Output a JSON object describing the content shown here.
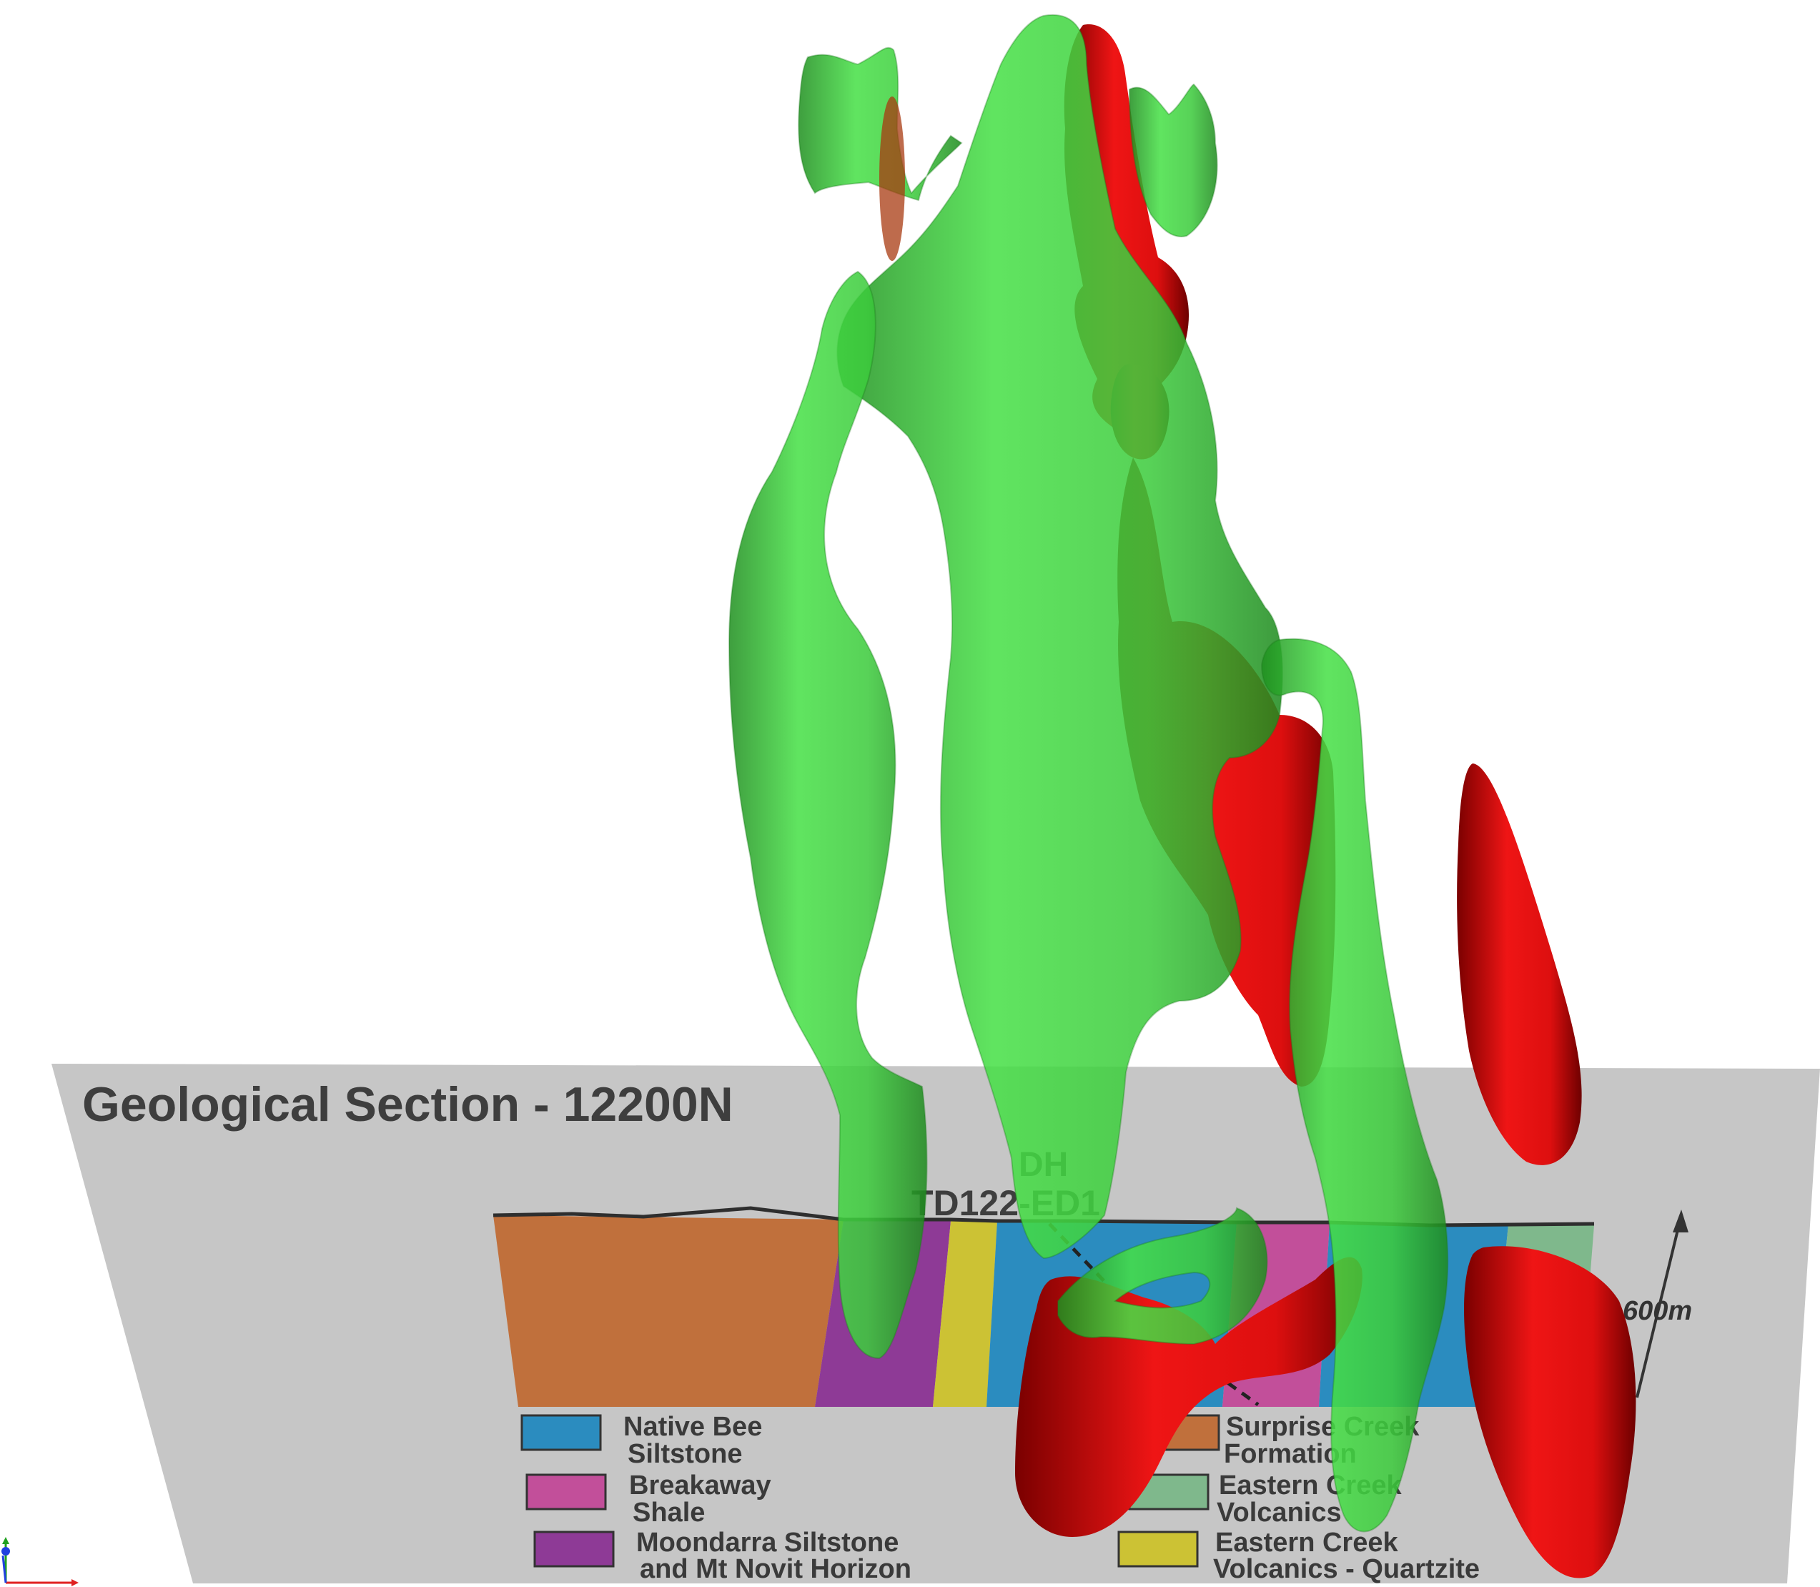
{
  "scene": {
    "background": "#ffffff",
    "section": {
      "title": "Geological Section - 12200N",
      "drillhole_line1": "DH",
      "drillhole_line2": "TD122-ED1",
      "scale_label": "600m",
      "panel_color": "#c6c6c6",
      "colors": {
        "surprise_creek": "#c0703c",
        "moondarra": "#8e3a96",
        "quartzite": "#ccc234",
        "native_bee": "#2b8cbf",
        "breakaway": "#c24f9a",
        "eastern_creek": "#7fb88c"
      },
      "legend": [
        {
          "line1": "Native Bee",
          "line2": "Siltstone",
          "color": "#2b8cbf"
        },
        {
          "line1": "Breakaway",
          "line2": "Shale",
          "color": "#c24f9a"
        },
        {
          "line1": "Moondarra Siltstone",
          "line2": "and Mt Novit Horizon",
          "color": "#8e3a96"
        },
        {
          "line1": "Surprise Creek",
          "line2": "Formation",
          "color": "#c0703c"
        },
        {
          "line1": "Eastern Creek",
          "line2": "Volcanics",
          "color": "#7fb88c"
        },
        {
          "line1": "Eastern Creek",
          "line2": "Volcanics - Quartzite",
          "color": "#ccc234"
        }
      ]
    },
    "isosurfaces": {
      "green_color": "#3ed83e",
      "red_color": "#e31010"
    },
    "axes_widget": {
      "x_color": "#e02020",
      "y_color": "#20a020",
      "z_color": "#2040e0"
    }
  }
}
